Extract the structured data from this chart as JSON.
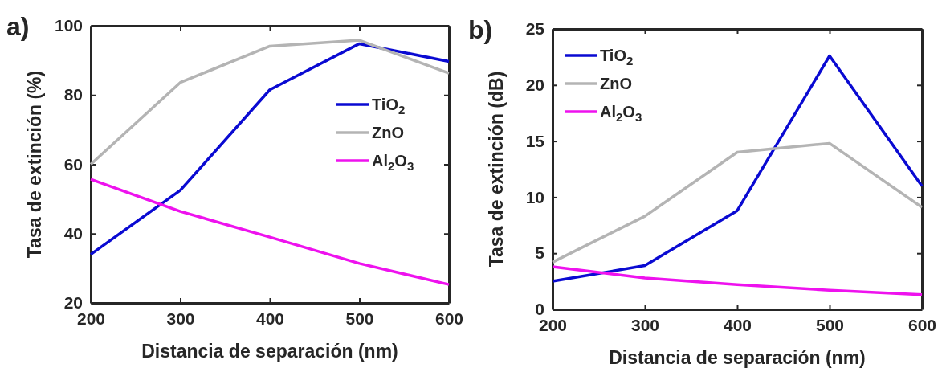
{
  "chart_data": [
    {
      "type": "line",
      "title": "a)",
      "xlabel": "Distancia de separación (nm)",
      "ylabel": "Tasa de extinción (%)",
      "x": [
        200,
        300,
        400,
        500,
        600
      ],
      "xlim": [
        200,
        600
      ],
      "xticks": [
        200,
        300,
        400,
        500,
        600
      ],
      "ylim": [
        20,
        100
      ],
      "yticks": [
        20,
        40,
        60,
        80,
        100
      ],
      "legend": "right",
      "grid": false,
      "marker": "none",
      "line_style": "solid",
      "series": [
        {
          "name": "TiO$_{2}$",
          "color": "#0a0ad2",
          "values": [
            34,
            52.5,
            81.5,
            94.8,
            89.7
          ]
        },
        {
          "name": "ZnO",
          "color": "#b4b4b4",
          "values": [
            60,
            83.6,
            94.1,
            95.8,
            86.3
          ]
        },
        {
          "name": "Al$_{2}$O$_{3}$",
          "color": "#ee12ee",
          "values": [
            55.7,
            46.4,
            39,
            31.4,
            25.3
          ]
        }
      ]
    },
    {
      "type": "line",
      "title": "b)",
      "xlabel": "Distancia de separación (nm)",
      "ylabel": "Tasa de extinción (dB)",
      "x": [
        200,
        300,
        400,
        500,
        600
      ],
      "xlim": [
        200,
        600
      ],
      "xticks": [
        200,
        300,
        400,
        500,
        600
      ],
      "ylim": [
        0,
        25
      ],
      "yticks": [
        0,
        5,
        10,
        15,
        20,
        25
      ],
      "legend": "top left",
      "grid": false,
      "marker": "none",
      "line_style": "solid",
      "series": [
        {
          "name": "TiO$_{2}$",
          "color": "#0a0ad2",
          "values": [
            2.5,
            3.9,
            8.8,
            22.6,
            11.0
          ]
        },
        {
          "name": "ZnO",
          "color": "#b4b4b4",
          "values": [
            4.2,
            8.3,
            14.0,
            14.8,
            9.1
          ]
        },
        {
          "name": "Al$_{2}$O$_{3}$",
          "color": "#ee12ee",
          "values": [
            3.8,
            2.8,
            2.2,
            1.7,
            1.3
          ]
        }
      ]
    }
  ]
}
